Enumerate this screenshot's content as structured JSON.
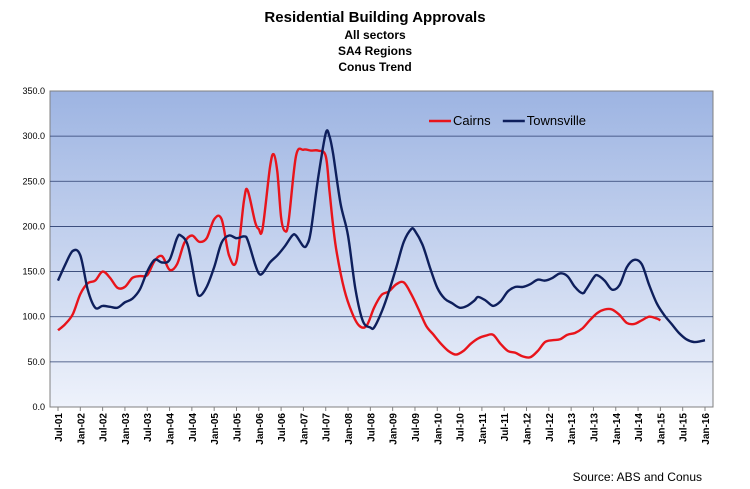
{
  "chart_data": {
    "type": "line",
    "title": "Residential Building Approvals",
    "subtitles": [
      "All sectors",
      "SA4 Regions",
      "Conus Trend"
    ],
    "ylim": [
      0,
      350
    ],
    "yticks": [
      "0.0",
      "50.0",
      "100.0",
      "150.0",
      "200.0",
      "250.0",
      "300.0",
      "350.0"
    ],
    "x_start": "Jul-01",
    "x_end": "Jan-16",
    "x_tick_labels": [
      "Jul-01",
      "Jan-02",
      "Jul-02",
      "Jan-03",
      "Jul-03",
      "Jan-04",
      "Jul-04",
      "Jan-05",
      "Jul-05",
      "Jan-06",
      "Jul-06",
      "Jan-07",
      "Jul-07",
      "Jan-08",
      "Jul-08",
      "Jan-09",
      "Jul-09",
      "Jan-10",
      "Jul-10",
      "Jan-11",
      "Jul-11",
      "Jan-12",
      "Jul-12",
      "Jan-13",
      "Jul-13",
      "Jan-14",
      "Jul-14",
      "Jan-15",
      "Jul-15",
      "Jan-16"
    ],
    "grid": true,
    "legend_position": "top-right",
    "colors": {
      "plot_top": "#9db4e2",
      "plot_bottom": "#eef2fb",
      "grid": "#2a3d6e"
    },
    "series": [
      {
        "name": "Cairns",
        "color": "#e8141b",
        "points": [
          [
            "Jul-01",
            85
          ],
          [
            "Sep-01",
            92
          ],
          [
            "Nov-01",
            103
          ],
          [
            "Jan-02",
            125
          ],
          [
            "Mar-02",
            137
          ],
          [
            "May-02",
            140
          ],
          [
            "Jul-02",
            150
          ],
          [
            "Sep-02",
            143
          ],
          [
            "Nov-02",
            132
          ],
          [
            "Jan-03",
            133
          ],
          [
            "Mar-03",
            143
          ],
          [
            "May-03",
            145
          ],
          [
            "Jul-03",
            146
          ],
          [
            "Sep-03",
            162
          ],
          [
            "Nov-03",
            167
          ],
          [
            "Jan-04",
            152
          ],
          [
            "Mar-04",
            158
          ],
          [
            "May-04",
            182
          ],
          [
            "Jul-04",
            190
          ],
          [
            "Sep-04",
            183
          ],
          [
            "Nov-04",
            187
          ],
          [
            "Jan-05",
            208
          ],
          [
            "Mar-05",
            208
          ],
          [
            "May-05",
            168
          ],
          [
            "Jul-05",
            162
          ],
          [
            "Sep-05",
            228
          ],
          [
            "Oct-05",
            240
          ],
          [
            "Dec-05",
            205
          ],
          [
            "Jan-06",
            197
          ],
          [
            "Feb-06",
            197
          ],
          [
            "Apr-06",
            265
          ],
          [
            "May-06",
            280
          ],
          [
            "Jun-06",
            260
          ],
          [
            "Jul-06",
            210
          ],
          [
            "Aug-06",
            195
          ],
          [
            "Sep-06",
            205
          ],
          [
            "Nov-06",
            278
          ],
          [
            "Jan-07",
            285
          ],
          [
            "Mar-07",
            284
          ],
          [
            "May-07",
            284
          ],
          [
            "Jul-07",
            278
          ],
          [
            "Aug-07",
            240
          ],
          [
            "Sep-07",
            200
          ],
          [
            "Oct-07",
            170
          ],
          [
            "Dec-07",
            130
          ],
          [
            "Feb-08",
            105
          ],
          [
            "Apr-08",
            90
          ],
          [
            "Jun-08",
            90
          ],
          [
            "Aug-08",
            110
          ],
          [
            "Oct-08",
            124
          ],
          [
            "Dec-08",
            128
          ],
          [
            "Feb-09",
            136
          ],
          [
            "Apr-09",
            138
          ],
          [
            "Jun-09",
            125
          ],
          [
            "Aug-09",
            108
          ],
          [
            "Oct-09",
            90
          ],
          [
            "Dec-09",
            80
          ],
          [
            "Feb-10",
            70
          ],
          [
            "Apr-10",
            62
          ],
          [
            "Jun-10",
            58
          ],
          [
            "Aug-10",
            62
          ],
          [
            "Oct-10",
            70
          ],
          [
            "Dec-10",
            76
          ],
          [
            "Feb-11",
            79
          ],
          [
            "Apr-11",
            80
          ],
          [
            "Jun-11",
            70
          ],
          [
            "Aug-11",
            62
          ],
          [
            "Oct-11",
            60
          ],
          [
            "Dec-11",
            56
          ],
          [
            "Feb-12",
            55
          ],
          [
            "Apr-12",
            62
          ],
          [
            "Jun-12",
            72
          ],
          [
            "Aug-12",
            74
          ],
          [
            "Oct-12",
            75
          ],
          [
            "Dec-12",
            80
          ],
          [
            "Feb-13",
            82
          ],
          [
            "Apr-13",
            87
          ],
          [
            "Jun-13",
            96
          ],
          [
            "Aug-13",
            104
          ],
          [
            "Oct-13",
            108
          ],
          [
            "Dec-13",
            108
          ],
          [
            "Feb-14",
            102
          ],
          [
            "Apr-14",
            93
          ],
          [
            "Jun-14",
            92
          ],
          [
            "Aug-14",
            96
          ],
          [
            "Oct-14",
            100
          ],
          [
            "Dec-14",
            98
          ],
          [
            "Jan-15",
            96
          ]
        ]
      },
      {
        "name": "Townsville",
        "color": "#0e1f5c",
        "points": [
          [
            "Jul-01",
            140
          ],
          [
            "Sep-01",
            158
          ],
          [
            "Nov-01",
            173
          ],
          [
            "Jan-02",
            168
          ],
          [
            "Mar-02",
            130
          ],
          [
            "May-02",
            110
          ],
          [
            "Jul-02",
            112
          ],
          [
            "Sep-02",
            111
          ],
          [
            "Nov-02",
            110
          ],
          [
            "Jan-03",
            116
          ],
          [
            "Mar-03",
            120
          ],
          [
            "May-03",
            130
          ],
          [
            "Jul-03",
            150
          ],
          [
            "Sep-03",
            163
          ],
          [
            "Nov-03",
            160
          ],
          [
            "Jan-04",
            163
          ],
          [
            "Mar-04",
            187
          ],
          [
            "Apr-04",
            190
          ],
          [
            "Jun-04",
            178
          ],
          [
            "Aug-04",
            135
          ],
          [
            "Sep-04",
            123
          ],
          [
            "Nov-04",
            133
          ],
          [
            "Jan-05",
            155
          ],
          [
            "Mar-05",
            182
          ],
          [
            "May-05",
            190
          ],
          [
            "Jul-05",
            187
          ],
          [
            "Sep-05",
            189
          ],
          [
            "Oct-05",
            185
          ],
          [
            "Dec-05",
            158
          ],
          [
            "Jan-06",
            148
          ],
          [
            "Feb-06",
            148
          ],
          [
            "Apr-06",
            160
          ],
          [
            "Jun-06",
            168
          ],
          [
            "Aug-06",
            178
          ],
          [
            "Oct-06",
            190
          ],
          [
            "Nov-06",
            190
          ],
          [
            "Jan-07",
            178
          ],
          [
            "Feb-07",
            180
          ],
          [
            "Mar-07",
            195
          ],
          [
            "May-07",
            255
          ],
          [
            "Jul-07",
            303
          ],
          [
            "Aug-07",
            300
          ],
          [
            "Sep-07",
            280
          ],
          [
            "Nov-07",
            225
          ],
          [
            "Jan-08",
            190
          ],
          [
            "Mar-08",
            130
          ],
          [
            "May-08",
            95
          ],
          [
            "Jul-08",
            88
          ],
          [
            "Aug-08",
            88
          ],
          [
            "Oct-08",
            105
          ],
          [
            "Dec-08",
            128
          ],
          [
            "Feb-09",
            155
          ],
          [
            "Apr-09",
            183
          ],
          [
            "Jun-09",
            197
          ],
          [
            "Jul-09",
            195
          ],
          [
            "Sep-09",
            180
          ],
          [
            "Nov-09",
            155
          ],
          [
            "Jan-10",
            132
          ],
          [
            "Mar-10",
            120
          ],
          [
            "May-10",
            115
          ],
          [
            "Jul-10",
            110
          ],
          [
            "Sep-10",
            112
          ],
          [
            "Nov-10",
            118
          ],
          [
            "Dec-10",
            122
          ],
          [
            "Feb-11",
            118
          ],
          [
            "Apr-11",
            112
          ],
          [
            "Jun-11",
            117
          ],
          [
            "Aug-11",
            128
          ],
          [
            "Oct-11",
            133
          ],
          [
            "Dec-11",
            133
          ],
          [
            "Feb-12",
            136
          ],
          [
            "Apr-12",
            141
          ],
          [
            "Jun-12",
            140
          ],
          [
            "Aug-12",
            143
          ],
          [
            "Oct-12",
            148
          ],
          [
            "Dec-12",
            145
          ],
          [
            "Feb-13",
            133
          ],
          [
            "Apr-13",
            126
          ],
          [
            "May-13",
            130
          ],
          [
            "Jul-13",
            143
          ],
          [
            "Aug-13",
            146
          ],
          [
            "Oct-13",
            140
          ],
          [
            "Dec-13",
            130
          ],
          [
            "Feb-14",
            135
          ],
          [
            "Apr-14",
            155
          ],
          [
            "Jun-14",
            163
          ],
          [
            "Aug-14",
            158
          ],
          [
            "Oct-14",
            135
          ],
          [
            "Dec-14",
            115
          ],
          [
            "Feb-15",
            102
          ],
          [
            "Apr-15",
            92
          ],
          [
            "Jun-15",
            82
          ],
          [
            "Aug-15",
            75
          ],
          [
            "Oct-15",
            72
          ],
          [
            "Dec-15",
            73
          ],
          [
            "Jan-16",
            74
          ]
        ]
      }
    ]
  },
  "source_text": "Source: ABS and Conus"
}
